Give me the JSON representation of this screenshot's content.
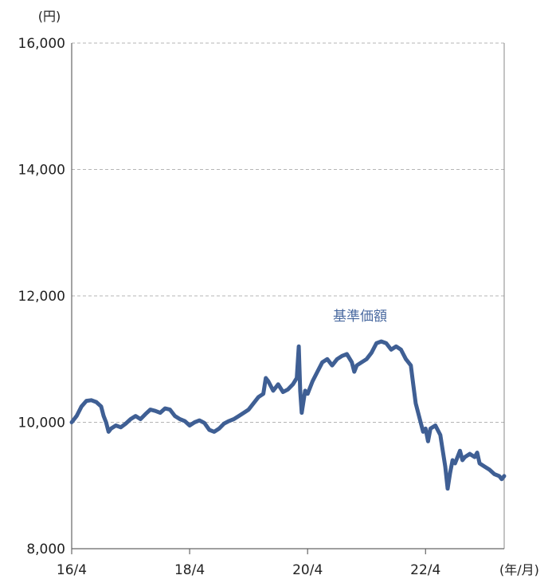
{
  "chart_data": {
    "type": "line",
    "y_unit": "(円)",
    "x_unit": "(年/月)",
    "x_ticks": [
      {
        "label": "16/4",
        "t": 0
      },
      {
        "label": "18/4",
        "t": 24
      },
      {
        "label": "20/4",
        "t": 48
      },
      {
        "label": "22/4",
        "t": 72
      }
    ],
    "x_range_months": [
      0,
      88
    ],
    "y_ticks": [
      {
        "label": "8,000",
        "value": 8000
      },
      {
        "label": "10,000",
        "value": 10000
      },
      {
        "label": "12,000",
        "value": 12000
      },
      {
        "label": "14,000",
        "value": 14000
      },
      {
        "label": "16,000",
        "value": 16000
      }
    ],
    "ylim": [
      8000,
      16000
    ],
    "grid": true,
    "colors": {
      "line": "#3f5f94",
      "label": "#4a6aa0",
      "grid": "#b5b5b5",
      "axis": "#666666"
    },
    "series": [
      {
        "name": "基準価額",
        "points": [
          [
            0,
            10000
          ],
          [
            1,
            10100
          ],
          [
            2,
            10250
          ],
          [
            3,
            10340
          ],
          [
            4,
            10350
          ],
          [
            5,
            10320
          ],
          [
            6,
            10250
          ],
          [
            6.5,
            10100
          ],
          [
            7,
            10000
          ],
          [
            7.5,
            9850
          ],
          [
            8,
            9900
          ],
          [
            9,
            9950
          ],
          [
            10,
            9920
          ],
          [
            11,
            9980
          ],
          [
            12,
            10050
          ],
          [
            13,
            10100
          ],
          [
            14,
            10050
          ],
          [
            15,
            10130
          ],
          [
            16,
            10200
          ],
          [
            17,
            10180
          ],
          [
            18,
            10150
          ],
          [
            19,
            10220
          ],
          [
            20,
            10200
          ],
          [
            21,
            10100
          ],
          [
            22,
            10050
          ],
          [
            23,
            10020
          ],
          [
            24,
            9950
          ],
          [
            25,
            10000
          ],
          [
            26,
            10030
          ],
          [
            27,
            9990
          ],
          [
            28,
            9880
          ],
          [
            29,
            9850
          ],
          [
            30,
            9900
          ],
          [
            31,
            9980
          ],
          [
            32,
            10020
          ],
          [
            33,
            10050
          ],
          [
            34,
            10100
          ],
          [
            35,
            10150
          ],
          [
            36,
            10200
          ],
          [
            37,
            10300
          ],
          [
            38,
            10400
          ],
          [
            39,
            10450
          ],
          [
            39.5,
            10700
          ],
          [
            40,
            10650
          ],
          [
            41,
            10500
          ],
          [
            42,
            10600
          ],
          [
            43,
            10480
          ],
          [
            44,
            10520
          ],
          [
            45,
            10600
          ],
          [
            45.8,
            10700
          ],
          [
            46.2,
            11200
          ],
          [
            46.5,
            10500
          ],
          [
            46.8,
            10150
          ],
          [
            47.5,
            10500
          ],
          [
            48,
            10450
          ],
          [
            49,
            10650
          ],
          [
            50,
            10800
          ],
          [
            51,
            10950
          ],
          [
            52,
            11000
          ],
          [
            53,
            10900
          ],
          [
            54,
            11000
          ],
          [
            55,
            11050
          ],
          [
            56,
            11080
          ],
          [
            57,
            10950
          ],
          [
            57.5,
            10800
          ],
          [
            58,
            10900
          ],
          [
            59,
            10950
          ],
          [
            60,
            11000
          ],
          [
            61,
            11100
          ],
          [
            62,
            11250
          ],
          [
            63,
            11280
          ],
          [
            64,
            11250
          ],
          [
            65,
            11150
          ],
          [
            66,
            11200
          ],
          [
            67,
            11150
          ],
          [
            68,
            11000
          ],
          [
            69,
            10900
          ],
          [
            69.5,
            10600
          ],
          [
            70,
            10300
          ],
          [
            71,
            10000
          ],
          [
            71.5,
            9850
          ],
          [
            72,
            9900
          ],
          [
            72.5,
            9700
          ],
          [
            73,
            9900
          ],
          [
            74,
            9950
          ],
          [
            75,
            9800
          ],
          [
            75.5,
            9550
          ],
          [
            76,
            9300
          ],
          [
            76.5,
            8950
          ],
          [
            77,
            9200
          ],
          [
            77.5,
            9400
          ],
          [
            78,
            9350
          ],
          [
            79,
            9550
          ],
          [
            79.5,
            9400
          ],
          [
            80,
            9450
          ],
          [
            81,
            9500
          ],
          [
            82,
            9450
          ],
          [
            82.5,
            9520
          ],
          [
            83,
            9350
          ],
          [
            84,
            9300
          ],
          [
            85,
            9250
          ],
          [
            86,
            9180
          ],
          [
            87,
            9150
          ],
          [
            87.5,
            9100
          ],
          [
            88,
            9150
          ]
        ]
      }
    ]
  }
}
